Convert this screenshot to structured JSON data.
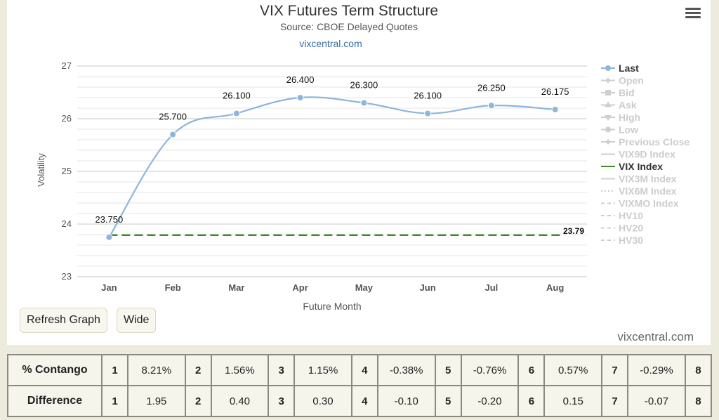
{
  "chart_data": {
    "type": "line",
    "title": "VIX Futures Term Structure",
    "subtitle": "Source: CBOE Delayed Quotes",
    "source_link": "vixcentral.com",
    "xlabel": "Future Month",
    "ylabel": "Volatility",
    "categories": [
      "Jan",
      "Feb",
      "Mar",
      "Apr",
      "May",
      "Jun",
      "Jul",
      "Aug"
    ],
    "ylim": [
      23,
      27
    ],
    "yticks": [
      23,
      24,
      25,
      26,
      27
    ],
    "grid": true,
    "legend_position": "right",
    "series": [
      {
        "name": "Last",
        "values": [
          23.75,
          25.7,
          26.1,
          26.4,
          26.3,
          26.1,
          26.25,
          26.175
        ],
        "labels": [
          "23.750",
          "25.700",
          "26.100",
          "26.400",
          "26.300",
          "26.100",
          "26.250",
          "26.175"
        ],
        "color": "#8db5de"
      },
      {
        "name": "VIX Index",
        "values": [
          23.79,
          23.79,
          23.79,
          23.79,
          23.79,
          23.79,
          23.79,
          23.79
        ],
        "end_label": "23.79",
        "color": "#3f8a2c",
        "style": "dashed"
      }
    ],
    "legend": [
      {
        "name": "Last",
        "active": true,
        "symbol": "circle-line"
      },
      {
        "name": "Open",
        "active": false,
        "symbol": "diamond-line"
      },
      {
        "name": "Bid",
        "active": false,
        "symbol": "square-line"
      },
      {
        "name": "Ask",
        "active": false,
        "symbol": "triangle-line"
      },
      {
        "name": "High",
        "active": false,
        "symbol": "triangle-down-line"
      },
      {
        "name": "Low",
        "active": false,
        "symbol": "circle-line"
      },
      {
        "name": "Previous Close",
        "active": false,
        "symbol": "diamond-line"
      },
      {
        "name": "VIX9D Index",
        "active": false,
        "symbol": "line"
      },
      {
        "name": "VIX Index",
        "active": true,
        "symbol": "line-green"
      },
      {
        "name": "VIX3M Index",
        "active": false,
        "symbol": "line"
      },
      {
        "name": "VIX6M Index",
        "active": false,
        "symbol": "dotted"
      },
      {
        "name": "VIXMO Index",
        "active": false,
        "symbol": "dashed"
      },
      {
        "name": "HV10",
        "active": false,
        "symbol": "dashed"
      },
      {
        "name": "HV20",
        "active": false,
        "symbol": "dashed"
      },
      {
        "name": "HV30",
        "active": false,
        "symbol": "dashed"
      }
    ]
  },
  "buttons": {
    "refresh": "Refresh Graph",
    "wide": "Wide"
  },
  "watermark": "vixcentral.com",
  "table": {
    "contango_label": "% Contango",
    "difference_label": "Difference",
    "indices": [
      "1",
      "2",
      "3",
      "4",
      "5",
      "6",
      "7",
      "8"
    ],
    "contango": [
      "8.21%",
      "1.56%",
      "1.15%",
      "-0.38%",
      "-0.76%",
      "0.57%",
      "-0.29%"
    ],
    "difference": [
      "1.95",
      "0.40",
      "0.30",
      "-0.10",
      "-0.20",
      "0.15",
      "-0.07"
    ]
  }
}
